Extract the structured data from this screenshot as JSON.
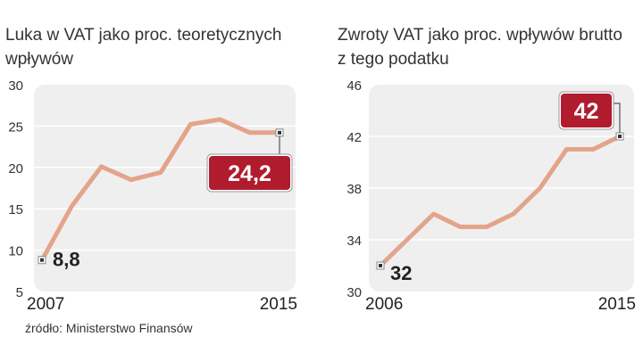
{
  "chart_data": [
    {
      "type": "line",
      "title": "Luka w VAT jako proc. teoretycznych wpływów",
      "x": [
        2007,
        2008,
        2009,
        2010,
        2011,
        2012,
        2013,
        2014,
        2015
      ],
      "values": [
        8.8,
        15.3,
        20.1,
        18.5,
        19.4,
        25.2,
        25.8,
        24.2,
        24.2
      ],
      "ylim": [
        5,
        30
      ],
      "yticks": [
        "5",
        "10",
        "15",
        "20",
        "25",
        "30"
      ],
      "x_start_label": "2007",
      "x_end_label": "2015",
      "start_label": "8,8",
      "end_label": "24,2",
      "grid": true
    },
    {
      "type": "line",
      "title": "Zwroty VAT jako proc. wpływów brutto z tego podatku",
      "x": [
        2006,
        2007,
        2008,
        2009,
        2010,
        2011,
        2012,
        2013,
        2014,
        2015
      ],
      "values": [
        32,
        34,
        36,
        35,
        35,
        36,
        38,
        41,
        41,
        42
      ],
      "ylim": [
        30,
        46
      ],
      "yticks": [
        "30",
        "34",
        "38",
        "42",
        "46"
      ],
      "x_start_label": "2006",
      "x_end_label": "2015",
      "start_label": "32",
      "end_label": "42",
      "grid": true
    }
  ],
  "titles": {
    "left_line1": "Luka w VAT jako proc. teoretycznych",
    "left_line2": "wpływów",
    "right_line1": "Zwroty VAT jako proc. wpływów brutto",
    "right_line2": "z tego podatku"
  },
  "source": "źródło: Ministerstwo Finansów",
  "colors": {
    "line": "#e3a48a",
    "panel": "#efefef",
    "grid": "#ffffff",
    "badge": "#b01c2e",
    "text": "#222222"
  }
}
